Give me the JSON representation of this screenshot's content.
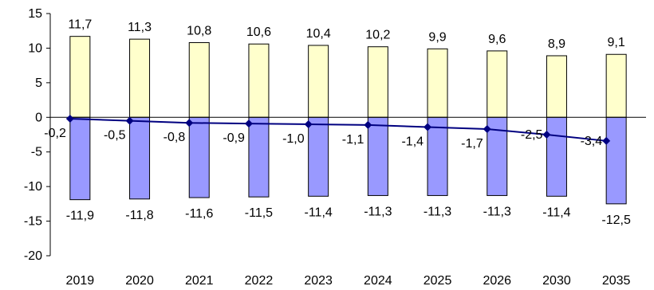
{
  "chart_data": {
    "type": "bar",
    "categories": [
      "2019",
      "2020",
      "2021",
      "2022",
      "2023",
      "2024",
      "2025",
      "2026",
      "2030",
      "2035"
    ],
    "series": [
      {
        "type": "bar",
        "values": [
          11.7,
          11.3,
          10.8,
          10.6,
          10.4,
          10.2,
          9.9,
          9.6,
          8.9,
          9.1
        ],
        "labels": [
          "11,7",
          "11,3",
          "10,8",
          "10,6",
          "10,4",
          "10,2",
          "9,9",
          "9,6",
          "8,9",
          "9,1"
        ],
        "color": "#FFFFCC"
      },
      {
        "type": "bar",
        "values": [
          -11.9,
          -11.8,
          -11.6,
          -11.5,
          -11.4,
          -11.3,
          -11.3,
          -11.3,
          -11.4,
          -12.5
        ],
        "labels": [
          "-11,9",
          "-11,8",
          "-11,6",
          "-11,5",
          "-11,4",
          "-11,3",
          "-11,3",
          "-11,3",
          "-11,4",
          "-12,5"
        ],
        "color": "#9999FF"
      },
      {
        "type": "line",
        "values": [
          -0.2,
          -0.5,
          -0.8,
          -0.9,
          -1.0,
          -1.1,
          -1.4,
          -1.7,
          -2.5,
          -3.4
        ],
        "labels": [
          "-0,2",
          "-0,5",
          "-0,8",
          "-0,9",
          "-1,0",
          "-1,1",
          "-1,4",
          "-1,7",
          "-2,5",
          "-3,4"
        ],
        "color": "#000080"
      }
    ],
    "ylim": [
      -20,
      15
    ],
    "yticks": [
      15,
      10,
      5,
      0,
      -5,
      -10,
      -15,
      -20
    ],
    "grid": false,
    "legend": "none",
    "title": "",
    "xlabel": "",
    "ylabel": ""
  }
}
